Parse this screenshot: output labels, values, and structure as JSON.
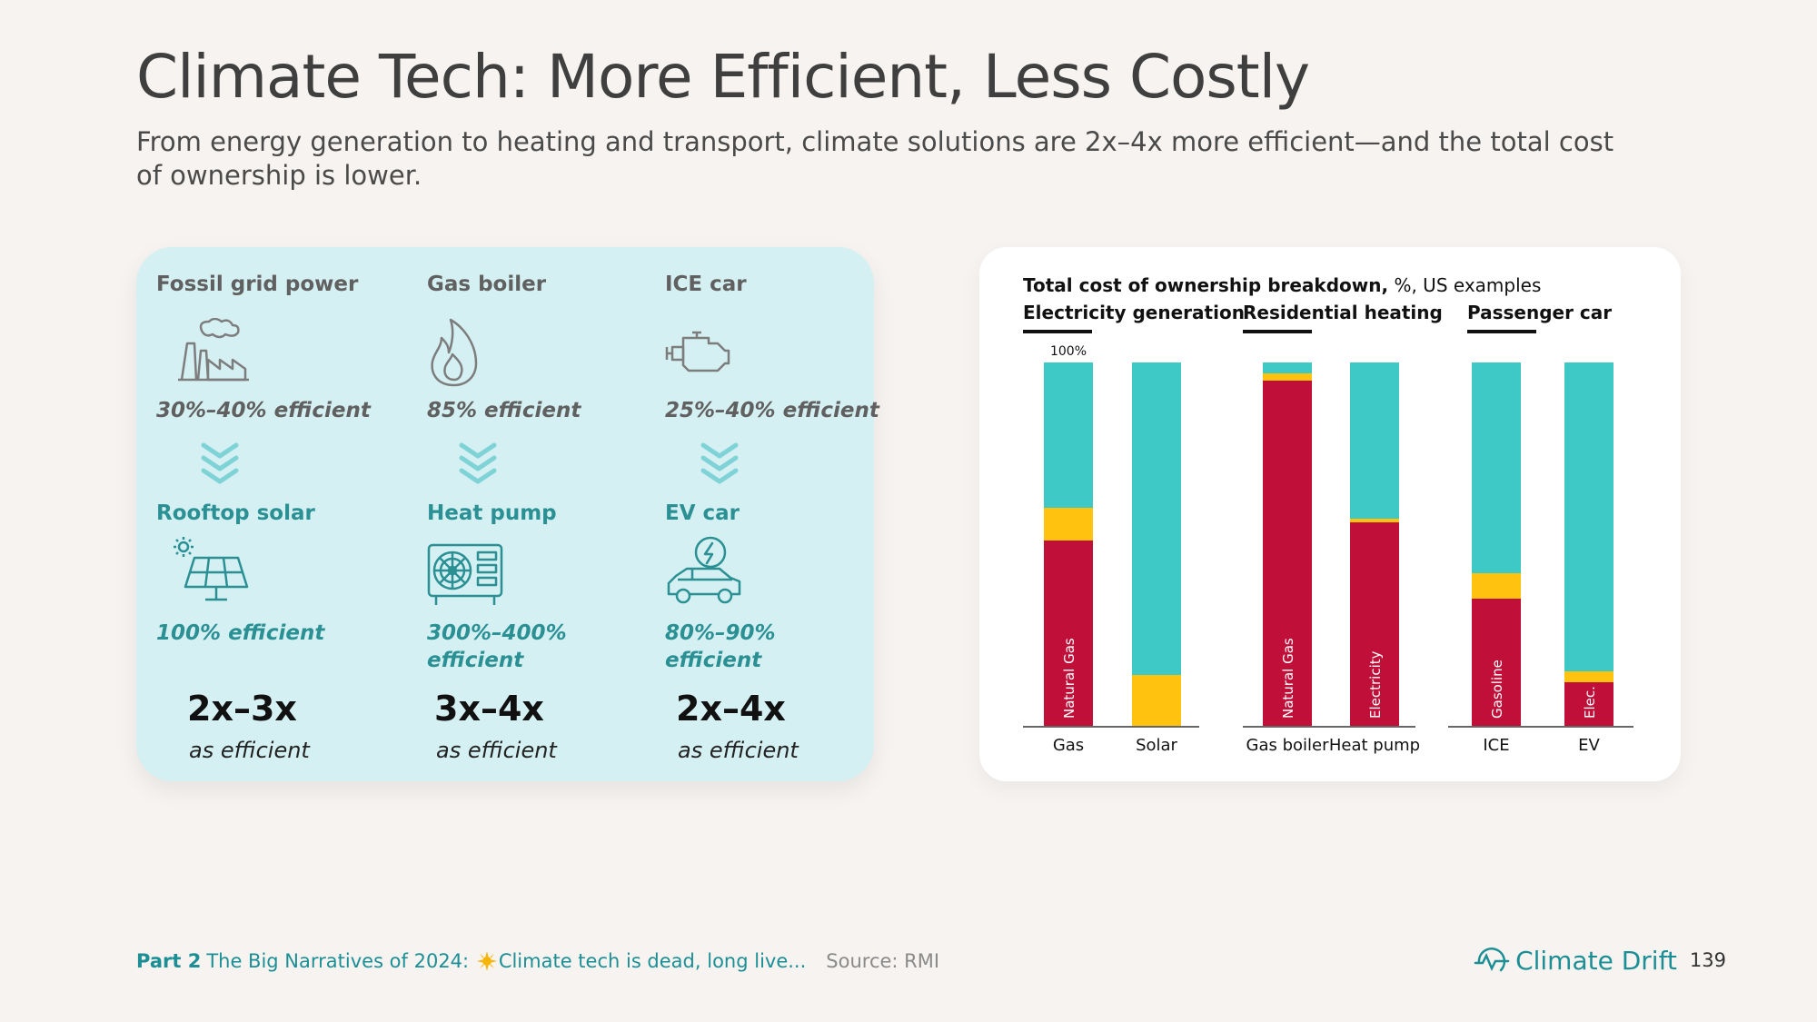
{
  "title": "Climate Tech: More Efficient, Less Costly",
  "subtitle": "From energy generation to heating and transport, climate solutions are 2x–4x more efficient—and the total cost of ownership is lower.",
  "comparison": {
    "columns": [
      {
        "old_label": "Fossil grid power",
        "old_icon": "factory-icon",
        "old_efficiency": "30%–40% efficient",
        "new_label": "Rooftop solar",
        "new_icon": "solar-panel-icon",
        "new_efficiency": "100% efficient",
        "multiplier": "2x–3x",
        "multiplier_sub": "as efficient"
      },
      {
        "old_label": "Gas boiler",
        "old_icon": "flame-icon",
        "old_efficiency": "85% efficient",
        "new_label": "Heat pump",
        "new_icon": "heat-pump-icon",
        "new_efficiency": "300%–400% efficient",
        "multiplier": "3x–4x",
        "multiplier_sub": "as efficient"
      },
      {
        "old_label": "ICE car",
        "old_icon": "engine-icon",
        "old_efficiency": "25%–40% efficient",
        "new_label": "EV car",
        "new_icon": "ev-car-icon",
        "new_efficiency": "80%–90% efficient",
        "multiplier": "2x–4x",
        "multiplier_sub": "as efficient"
      }
    ],
    "colors": {
      "card": "#d5f0f2",
      "teal_text": "#2a9094",
      "chevron": "#7fd3d6"
    }
  },
  "chart_data": {
    "type": "bar",
    "title_bold": "Total cost of ownership breakdown,",
    "title_rest": " %, US examples",
    "groups": [
      "Electricity generation",
      "Residential heating",
      "Passenger car"
    ],
    "categories": [
      "Gas",
      "Solar",
      "Gas boiler",
      "Heat pump",
      "ICE",
      "EV"
    ],
    "top_label": "100%",
    "ylim": [
      0,
      100
    ],
    "stacked": true,
    "series": [
      {
        "color": "#c0103a",
        "values": [
          51,
          0,
          95,
          56,
          35,
          12
        ],
        "bar_labels": [
          "Natural Gas",
          "",
          "Natural Gas",
          "Electricity",
          "Gasoline",
          "Elec."
        ]
      },
      {
        "color": "#ffc20e",
        "values": [
          9,
          14,
          2,
          1,
          7,
          3
        ]
      },
      {
        "color": "#3ec9c6",
        "values": [
          40,
          86,
          3,
          43,
          58,
          85
        ]
      }
    ]
  },
  "footer": {
    "part": "Part 2",
    "narrative_before": "The Big Narratives of 2024:",
    "narrative_after": "Climate tech is dead, long live...",
    "source": "Source: RMI",
    "brand": "Climate Drift",
    "page_number": "139"
  }
}
